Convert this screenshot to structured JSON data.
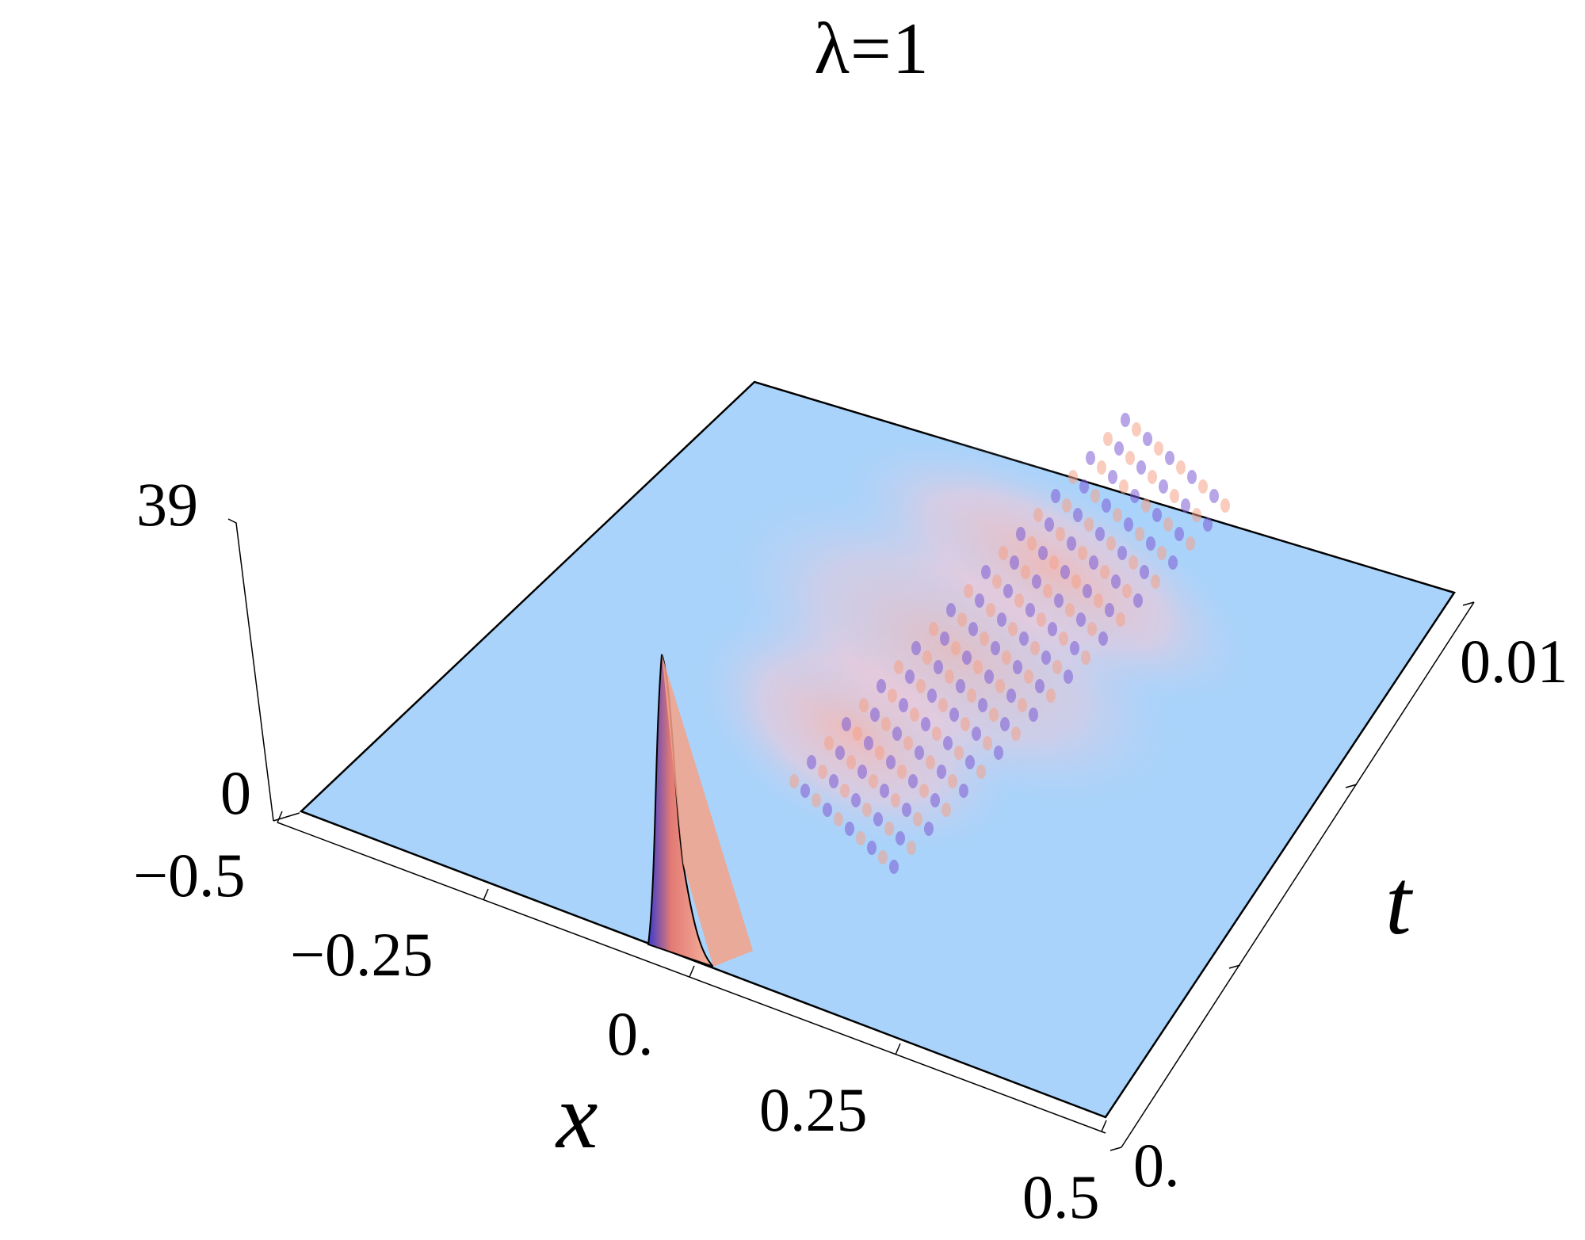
{
  "chart_data": {
    "type": "surface3d",
    "title": "λ=1",
    "xlabel": "x",
    "ylabel": "t",
    "zlabel": "",
    "x_ticks": [
      "−0.5",
      "−0.25",
      "0.",
      "0.25",
      "0.5"
    ],
    "t_ticks": [
      "0.",
      "0.01"
    ],
    "z_ticks": [
      "39",
      "0"
    ],
    "xlim": [
      -0.5,
      0.5
    ],
    "tlim": [
      0,
      0.012
    ],
    "zlim": [
      0,
      39
    ],
    "initial_peak": {
      "x": 0.0,
      "t": 0.0,
      "z": 39
    },
    "dispersion_front": [
      {
        "t": 0.0,
        "x_range": [
          0.0,
          0.05
        ]
      },
      {
        "t": 0.004,
        "x_range": [
          -0.02,
          0.14
        ]
      },
      {
        "t": 0.008,
        "x_range": [
          -0.05,
          0.26
        ]
      },
      {
        "t": 0.012,
        "x_range": [
          -0.08,
          0.36
        ]
      }
    ],
    "colors": {
      "base": "#a9d3fb",
      "high": "#f4a288",
      "peak": "#e07a6a",
      "trough": "#7b5bd6",
      "edge": "#000000"
    }
  }
}
